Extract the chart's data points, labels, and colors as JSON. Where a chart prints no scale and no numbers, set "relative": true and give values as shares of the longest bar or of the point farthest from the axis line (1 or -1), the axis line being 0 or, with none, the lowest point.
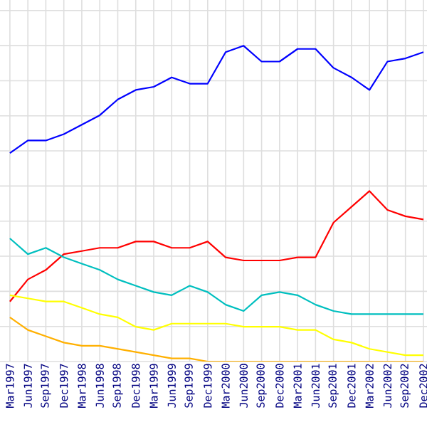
{
  "chart_data": {
    "type": "line",
    "relative": true,
    "grid": true,
    "categories": [
      "Mar1997",
      "Jun1997",
      "Sep1997",
      "Dec1997",
      "Mar1998",
      "Jun1998",
      "Sep1998",
      "Dec1998",
      "Mar1999",
      "Jun1999",
      "Sep1999",
      "Dec1999",
      "Mar2000",
      "Jun2000",
      "Sep2000",
      "Dec2000",
      "Mar2001",
      "Jun2001",
      "Sep2001",
      "Dec2001",
      "Mar2002",
      "Jun2002",
      "Sep2002",
      "Dec2002"
    ],
    "series": [
      {
        "color": "#0000ff",
        "values": [
          0.66,
          0.7,
          0.7,
          0.72,
          0.75,
          0.78,
          0.83,
          0.86,
          0.87,
          0.9,
          0.88,
          0.88,
          0.98,
          1.0,
          0.95,
          0.95,
          0.99,
          0.99,
          0.93,
          0.9,
          0.86,
          0.95,
          0.96,
          0.98
        ]
      },
      {
        "color": "#ff0000",
        "values": [
          0.19,
          0.26,
          0.29,
          0.34,
          0.35,
          0.36,
          0.36,
          0.38,
          0.38,
          0.36,
          0.36,
          0.38,
          0.33,
          0.32,
          0.32,
          0.32,
          0.33,
          0.33,
          0.44,
          0.49,
          0.54,
          0.48,
          0.46,
          0.45
        ]
      },
      {
        "color": "#00bfbf",
        "values": [
          0.39,
          0.34,
          0.36,
          0.33,
          0.31,
          0.29,
          0.26,
          0.24,
          0.22,
          0.21,
          0.24,
          0.22,
          0.18,
          0.16,
          0.21,
          0.22,
          0.21,
          0.18,
          0.16,
          0.15,
          0.15,
          0.15,
          0.15,
          0.15
        ]
      },
      {
        "color": "#ffff00",
        "values": [
          0.21,
          0.2,
          0.19,
          0.19,
          0.17,
          0.15,
          0.14,
          0.11,
          0.1,
          0.12,
          0.12,
          0.12,
          0.12,
          0.11,
          0.11,
          0.11,
          0.1,
          0.1,
          0.07,
          0.06,
          0.04,
          0.03,
          0.02,
          0.02
        ]
      },
      {
        "color": "#ffb000",
        "values": [
          0.14,
          0.1,
          0.08,
          0.06,
          0.05,
          0.05,
          0.04,
          0.03,
          0.02,
          0.01,
          0.01,
          0,
          0,
          0,
          0,
          0,
          0,
          0,
          0,
          0,
          0,
          0,
          0,
          0
        ]
      }
    ]
  }
}
